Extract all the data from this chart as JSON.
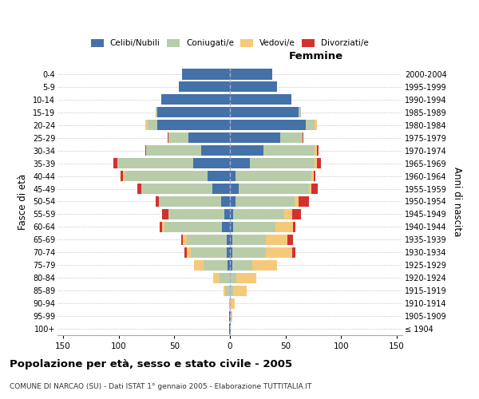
{
  "age_groups": [
    "100+",
    "95-99",
    "90-94",
    "85-89",
    "80-84",
    "75-79",
    "70-74",
    "65-69",
    "60-64",
    "55-59",
    "50-54",
    "45-49",
    "40-44",
    "35-39",
    "30-34",
    "25-29",
    "20-24",
    "15-19",
    "10-14",
    "5-9",
    "0-4"
  ],
  "birth_years": [
    "≤ 1904",
    "1905-1909",
    "1910-1914",
    "1915-1919",
    "1920-1924",
    "1925-1929",
    "1930-1934",
    "1935-1939",
    "1940-1944",
    "1945-1949",
    "1950-1954",
    "1955-1959",
    "1960-1964",
    "1965-1969",
    "1970-1974",
    "1975-1979",
    "1980-1984",
    "1985-1989",
    "1990-1994",
    "1995-1999",
    "2000-2004"
  ],
  "male_celibi": [
    1,
    1,
    0,
    0,
    0,
    2,
    3,
    3,
    7,
    5,
    8,
    16,
    20,
    33,
    26,
    37,
    65,
    65,
    62,
    46,
    43
  ],
  "male_coniugati": [
    0,
    0,
    1,
    4,
    9,
    22,
    32,
    36,
    52,
    50,
    56,
    64,
    74,
    68,
    49,
    18,
    9,
    2,
    0,
    0,
    0
  ],
  "male_vedovi": [
    0,
    0,
    0,
    2,
    6,
    8,
    4,
    3,
    2,
    0,
    0,
    0,
    2,
    0,
    0,
    0,
    2,
    0,
    0,
    0,
    0
  ],
  "male_divorziati": [
    0,
    0,
    0,
    0,
    0,
    0,
    2,
    2,
    2,
    6,
    3,
    3,
    2,
    4,
    1,
    1,
    0,
    0,
    0,
    0,
    0
  ],
  "female_nubili": [
    1,
    1,
    0,
    0,
    0,
    2,
    2,
    2,
    3,
    3,
    5,
    8,
    5,
    18,
    30,
    45,
    68,
    62,
    55,
    42,
    38
  ],
  "female_coniugate": [
    0,
    0,
    0,
    3,
    6,
    18,
    30,
    30,
    38,
    46,
    53,
    63,
    68,
    58,
    46,
    20,
    8,
    2,
    0,
    0,
    0
  ],
  "female_vedove": [
    0,
    1,
    4,
    12,
    18,
    22,
    24,
    20,
    16,
    7,
    4,
    2,
    2,
    2,
    2,
    0,
    2,
    0,
    0,
    0,
    0
  ],
  "female_divorziate": [
    0,
    0,
    0,
    0,
    0,
    0,
    3,
    5,
    2,
    8,
    9,
    6,
    2,
    4,
    2,
    1,
    0,
    0,
    0,
    0,
    0
  ],
  "color_celibi": "#4472a8",
  "color_coniugati": "#b8ccaa",
  "color_vedovi": "#f5c97a",
  "color_divorziati": "#d43030",
  "xlim": 155,
  "title": "Popolazione per età, sesso e stato civile - 2005",
  "subtitle": "COMUNE DI NARCAO (SU) - Dati ISTAT 1° gennaio 2005 - Elaborazione TUTTITALIA.IT",
  "ylabel_left": "Fasce di età",
  "ylabel_right": "Anni di nascita",
  "label_femmine": "Femmine",
  "legend_labels": [
    "Celibi/Nubili",
    "Coniugati/e",
    "Vedovi/e",
    "Divorziati/e"
  ],
  "bg_color": "#ffffff"
}
